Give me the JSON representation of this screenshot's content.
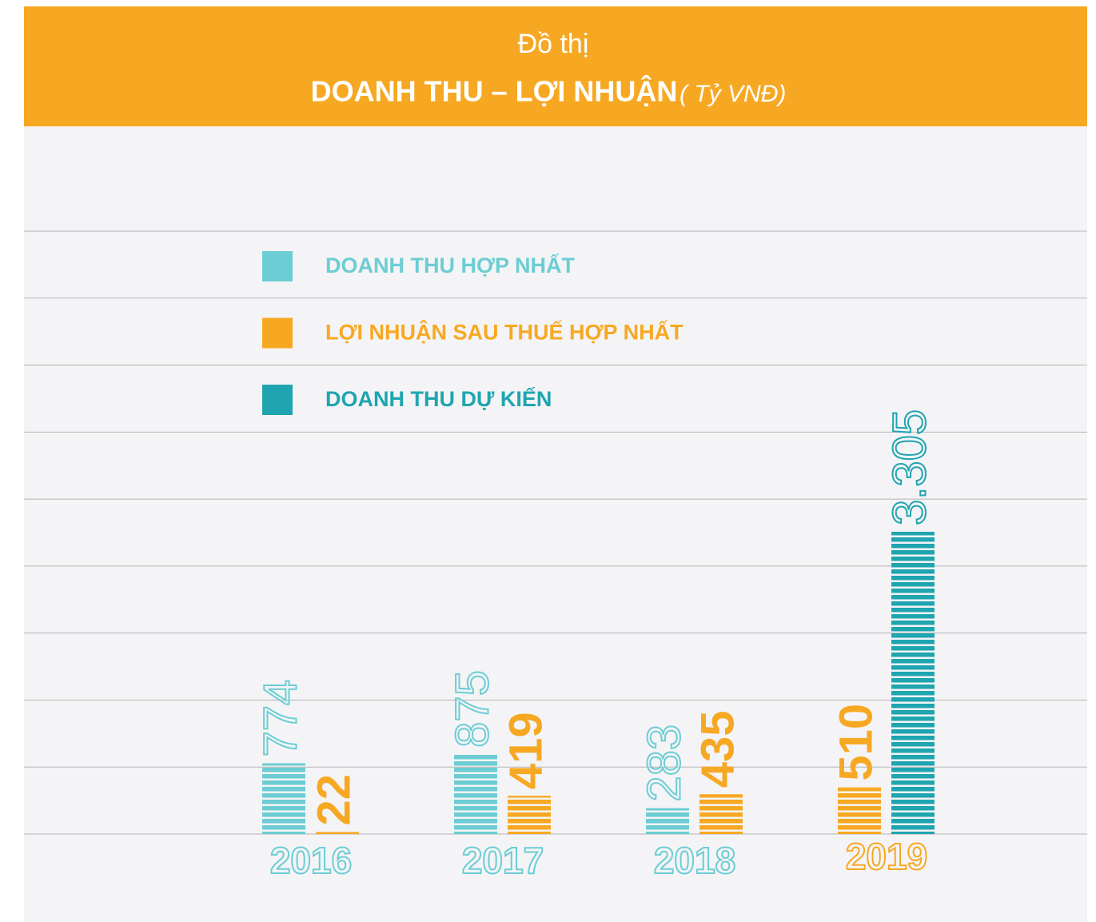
{
  "chart_data": {
    "type": "bar",
    "pretitle": "Đồ thị",
    "title": "DOANH THU – LỢI NHUẬN",
    "unit": "( Tỷ VNĐ)",
    "categories": [
      "2016",
      "2017",
      "2018",
      "2019"
    ],
    "series": [
      {
        "name": "DOANH THU HỢP NHẤT",
        "color": "#6ccdd4",
        "values": [
          774,
          875,
          283,
          null
        ]
      },
      {
        "name": "LỢI NHUẬN SAU THUẾ HỢP NHẤT",
        "color": "#f7a823",
        "values": [
          22,
          419,
          435,
          510
        ]
      },
      {
        "name": "DOANH THU DỰ KIẾN",
        "color": "#1fa5b0",
        "values": [
          null,
          null,
          null,
          3305
        ],
        "value_labels": [
          null,
          null,
          null,
          "3.305"
        ]
      }
    ],
    "grid": true
  }
}
